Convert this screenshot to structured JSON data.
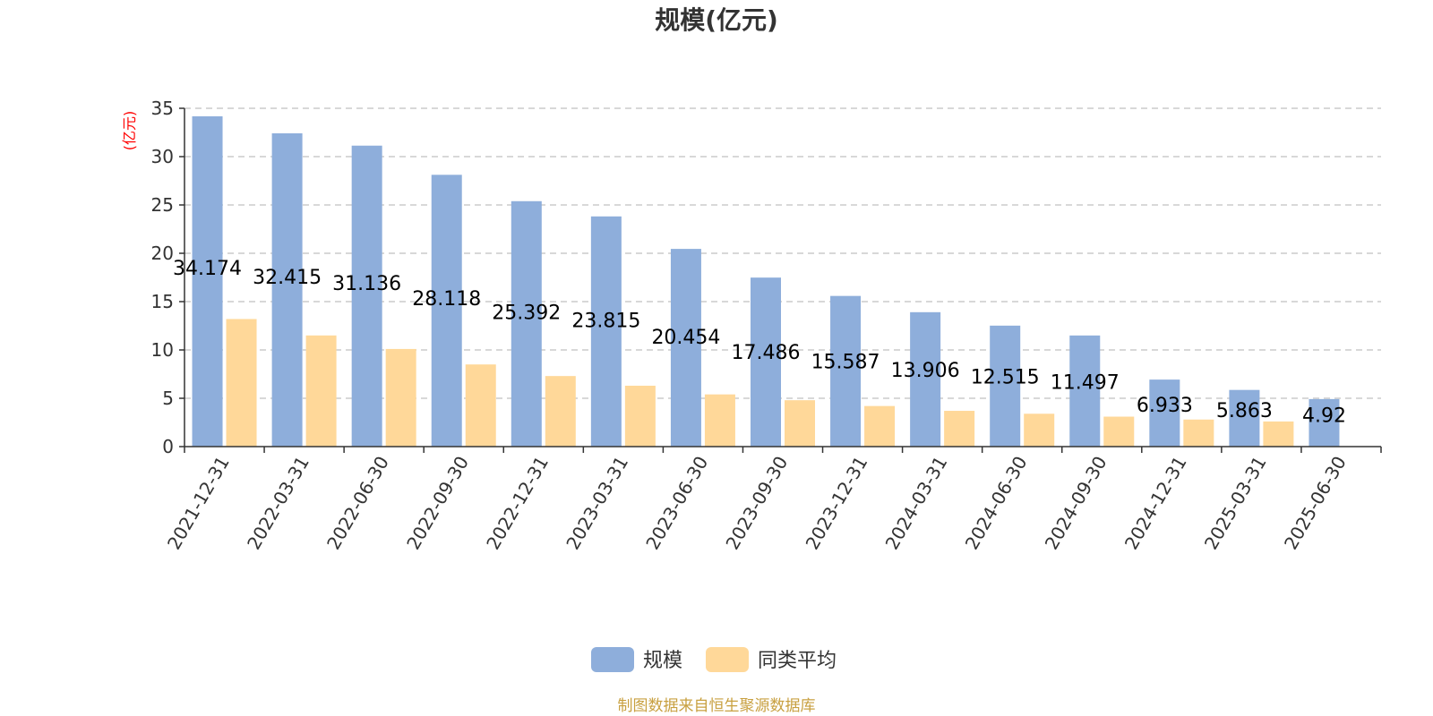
{
  "chart_data": {
    "type": "bar",
    "title": "规模(亿元)",
    "ylabel": "(亿元)",
    "xlabel": "",
    "ylim": [
      0,
      35
    ],
    "yticks": [
      0,
      5,
      10,
      15,
      20,
      25,
      30,
      35
    ],
    "grid": true,
    "legend_position": "bottom",
    "categories": [
      "2021-12-31",
      "2022-03-31",
      "2022-06-30",
      "2022-09-30",
      "2022-12-31",
      "2023-03-31",
      "2023-06-30",
      "2023-09-30",
      "2023-12-31",
      "2024-03-31",
      "2024-06-30",
      "2024-09-30",
      "2024-12-31",
      "2025-03-31",
      "2025-06-30"
    ],
    "series": [
      {
        "name": "规模",
        "color": "#8eaedb",
        "values": [
          34.174,
          32.415,
          31.136,
          28.118,
          25.392,
          23.815,
          20.454,
          17.486,
          15.587,
          13.906,
          12.515,
          11.497,
          6.933,
          5.863,
          4.92
        ],
        "labels": [
          "34.174",
          "32.415",
          "31.136",
          "28.118",
          "25.392",
          "23.815",
          "20.454",
          "17.486",
          "15.587",
          "13.906",
          "12.515",
          "11.497",
          "6.933",
          "5.863",
          "4.92"
        ]
      },
      {
        "name": "同类平均",
        "color": "#ffd899",
        "values": [
          13.2,
          11.5,
          10.1,
          8.5,
          7.3,
          6.3,
          5.4,
          4.8,
          4.2,
          3.7,
          3.4,
          3.1,
          2.8,
          2.6,
          null
        ]
      }
    ]
  },
  "colors": {
    "ylabel": "#ff0000",
    "source": "#c8a040",
    "axis": "#333333",
    "grid": "#cccccc"
  },
  "footer": {
    "source": "制图数据来自恒生聚源数据库"
  }
}
